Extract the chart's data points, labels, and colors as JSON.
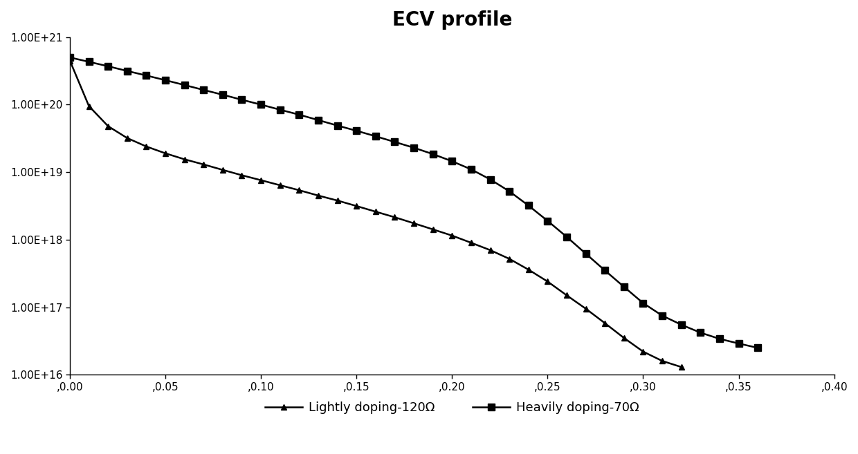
{
  "title": "ECV profile",
  "title_fontsize": 20,
  "title_fontweight": "bold",
  "background_color": "#ffffff",
  "xlim": [
    0,
    0.4
  ],
  "ylim_log": [
    1e+16,
    1e+21
  ],
  "xticks": [
    0.0,
    0.05,
    0.1,
    0.15,
    0.2,
    0.25,
    0.3,
    0.35,
    0.4
  ],
  "yticks": [
    1e+16,
    1e+17,
    1e+18,
    1e+19,
    1e+20,
    1e+21
  ],
  "ytick_labels": [
    "1.00E+16",
    "1.00E+17",
    "1.00E+18",
    "1.00E+19",
    "1.00E+20",
    "1.00E+21"
  ],
  "xtick_labels": [
    ",0.00",
    ",0.05",
    ",0.10",
    ",0.15",
    ",0.20",
    ",0.25",
    ",0.30",
    ",0.35",
    ",0.40"
  ],
  "line_color": "#000000",
  "lightly_label": "Lightly doping-120Ω",
  "heavily_label": "Heavily doping-70Ω",
  "lightly_x": [
    0.0,
    0.01,
    0.02,
    0.03,
    0.04,
    0.05,
    0.06,
    0.07,
    0.08,
    0.09,
    0.1,
    0.11,
    0.12,
    0.13,
    0.14,
    0.15,
    0.16,
    0.17,
    0.18,
    0.19,
    0.2,
    0.21,
    0.22,
    0.23,
    0.24,
    0.25,
    0.26,
    0.27,
    0.28,
    0.29,
    0.3,
    0.31,
    0.32
  ],
  "lightly_y": [
    4.5e+20,
    9.5e+19,
    4.8e+19,
    3.2e+19,
    2.4e+19,
    1.9e+19,
    1.55e+19,
    1.3e+19,
    1.08e+19,
    9e+18,
    7.6e+18,
    6.4e+18,
    5.4e+18,
    4.5e+18,
    3.8e+18,
    3.15e+18,
    2.6e+18,
    2.15e+18,
    1.75e+18,
    1.42e+18,
    1.15e+18,
    9e+17,
    7e+17,
    5.2e+17,
    3.6e+17,
    2.4e+17,
    1.5e+17,
    9.5e+16,
    5.8e+16,
    3.5e+16,
    2.2e+16,
    1.6e+16,
    1.3e+16
  ],
  "heavily_x": [
    0.0,
    0.01,
    0.02,
    0.03,
    0.04,
    0.05,
    0.06,
    0.07,
    0.08,
    0.09,
    0.1,
    0.11,
    0.12,
    0.13,
    0.14,
    0.15,
    0.16,
    0.17,
    0.18,
    0.19,
    0.2,
    0.21,
    0.22,
    0.23,
    0.24,
    0.25,
    0.26,
    0.27,
    0.28,
    0.29,
    0.3,
    0.31,
    0.32,
    0.33,
    0.34,
    0.35,
    0.36
  ],
  "heavily_y": [
    5e+20,
    4.3e+20,
    3.7e+20,
    3.15e+20,
    2.7e+20,
    2.3e+20,
    1.95e+20,
    1.65e+20,
    1.4e+20,
    1.18e+20,
    1e+20,
    8.4e+19,
    7.1e+19,
    5.9e+19,
    4.9e+19,
    4.1e+19,
    3.4e+19,
    2.8e+19,
    2.3e+19,
    1.85e+19,
    1.45e+19,
    1.1e+19,
    7.8e+18,
    5.2e+18,
    3.2e+18,
    1.9e+18,
    1.1e+18,
    6.2e+17,
    3.5e+17,
    2e+17,
    1.15e+17,
    7.5e+16,
    5.5e+16,
    4.2e+16,
    3.4e+16,
    2.9e+16,
    2.5e+16
  ],
  "marker_size_triangle": 6,
  "marker_size_square": 7,
  "linewidth": 1.8
}
